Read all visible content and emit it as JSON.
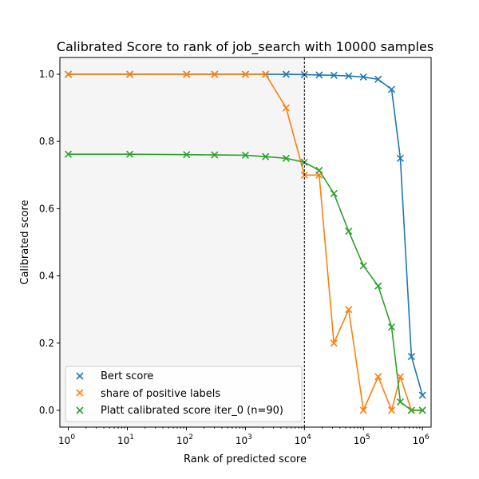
{
  "chart_data": {
    "type": "line",
    "title": "Calibrated Score to rank of job_search with 10000 samples",
    "xlabel": "Rank of predicted score",
    "ylabel": "Calibrated score",
    "xscale": "log",
    "xlim": [
      0.72,
      1400000
    ],
    "ylim": [
      -0.05,
      1.05
    ],
    "x_ticks": [
      {
        "value": 1,
        "base": "10",
        "exp": "0"
      },
      {
        "value": 10,
        "base": "10",
        "exp": "1"
      },
      {
        "value": 100,
        "base": "10",
        "exp": "2"
      },
      {
        "value": 1000,
        "base": "10",
        "exp": "3"
      },
      {
        "value": 10000,
        "base": "10",
        "exp": "4"
      },
      {
        "value": 100000,
        "base": "10",
        "exp": "5"
      },
      {
        "value": 1000000,
        "base": "10",
        "exp": "6"
      }
    ],
    "y_ticks": [
      {
        "value": 0.0,
        "label": "0.0"
      },
      {
        "value": 0.2,
        "label": "0.2"
      },
      {
        "value": 0.4,
        "label": "0.4"
      },
      {
        "value": 0.6,
        "label": "0.6"
      },
      {
        "value": 0.8,
        "label": "0.8"
      },
      {
        "value": 1.0,
        "label": "1.0"
      }
    ],
    "vline_x": 10000,
    "shaded_region": [
      0.72,
      10000
    ],
    "grid": false,
    "legend_position": "lower-left",
    "series": [
      {
        "name": "Bert score",
        "color": "#1f77b4",
        "marker": "x",
        "x": [
          1,
          11,
          101,
          301,
          1001,
          2201,
          4901,
          10001,
          17801,
          31601,
          56201,
          100001,
          177801,
          300001,
          421701,
          650001,
          1000000
        ],
        "y": [
          1.0,
          1.0,
          1.0,
          1.0,
          1.0,
          1.0,
          1.0,
          0.999,
          0.998,
          0.997,
          0.995,
          0.992,
          0.985,
          0.955,
          0.75,
          0.16,
          0.045
        ]
      },
      {
        "name": "share of positive labels",
        "color": "#ff7f0e",
        "marker": "x",
        "x": [
          1,
          11,
          101,
          301,
          1001,
          2201,
          4901,
          10001,
          17801,
          31601,
          56201,
          100001,
          177801,
          300001,
          421701,
          650001,
          1000000
        ],
        "y": [
          1.0,
          1.0,
          1.0,
          1.0,
          1.0,
          1.0,
          0.9,
          0.7,
          0.7,
          0.2,
          0.3,
          0.0,
          0.1,
          0.0,
          0.1,
          0.0,
          0.0
        ]
      },
      {
        "name": "Platt calibrated score iter_0 (n=90)",
        "color": "#2ca02c",
        "marker": "x",
        "x": [
          1,
          11,
          101,
          301,
          1001,
          2201,
          4901,
          10001,
          17801,
          31601,
          56201,
          100001,
          177801,
          300001,
          421701,
          650001,
          1000000
        ],
        "y": [
          0.762,
          0.762,
          0.761,
          0.76,
          0.759,
          0.755,
          0.75,
          0.738,
          0.714,
          0.645,
          0.533,
          0.43,
          0.37,
          0.248,
          0.025,
          0.0,
          0.0
        ]
      }
    ]
  }
}
